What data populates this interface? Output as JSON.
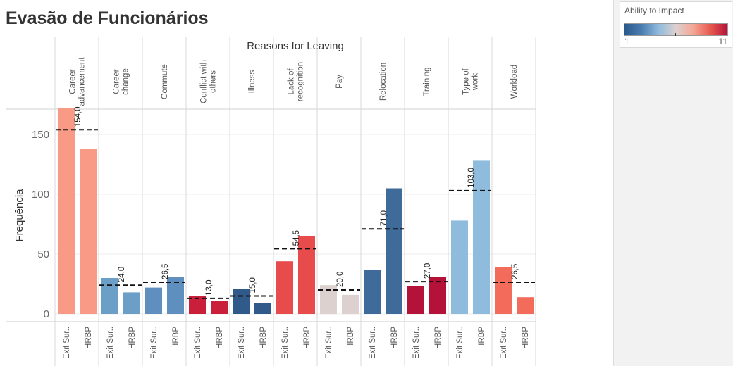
{
  "title": "Evasão de Funcionários",
  "legend": {
    "title": "Ability to Impact",
    "min_label": "1",
    "max_label": "11",
    "colors": [
      "#2a5a8c",
      "#4a7db0",
      "#8fbbdd",
      "#ddd1d0",
      "#f4a795",
      "#e85a4f",
      "#b5123a"
    ]
  },
  "chart_data": {
    "type": "bar",
    "title": "Evasão de Funcionários",
    "column_header": "Reasons for Leaving",
    "ylabel": "Frequência",
    "ylim": [
      0,
      175
    ],
    "yticks": [
      0,
      50,
      100,
      150
    ],
    "grid": true,
    "legend_position": "top-right",
    "sub_categories": [
      "Exit Sur..",
      "HRBP"
    ],
    "groups": [
      {
        "name": "Career advancement",
        "values": [
          172,
          138
        ],
        "colors": [
          "#f89a85",
          "#f89a85"
        ],
        "reference": 154.0,
        "reference_label": "154,0"
      },
      {
        "name": "Career change",
        "values": [
          30,
          18
        ],
        "colors": [
          "#6c9fc8",
          "#6c9fc8"
        ],
        "reference": 24.0,
        "reference_label": "24,0"
      },
      {
        "name": "Commute",
        "values": [
          22,
          31
        ],
        "colors": [
          "#5e8fbe",
          "#5e8fbe"
        ],
        "reference": 26.5,
        "reference_label": "26,5"
      },
      {
        "name": "Conflict with others",
        "values": [
          15,
          11
        ],
        "colors": [
          "#c91f3a",
          "#c91f3a"
        ],
        "reference": 13.0,
        "reference_label": "13,0"
      },
      {
        "name": "Illness",
        "values": [
          21,
          9
        ],
        "colors": [
          "#2f5a89",
          "#2f5a89"
        ],
        "reference": 15.0,
        "reference_label": "15,0"
      },
      {
        "name": "Lack of recognition",
        "values": [
          44,
          65
        ],
        "colors": [
          "#e84b4b",
          "#e84b4b"
        ],
        "reference": 54.5,
        "reference_label": "54,5"
      },
      {
        "name": "Pay",
        "values": [
          24,
          16
        ],
        "colors": [
          "#ddd1cf",
          "#ddd1cf"
        ],
        "reference": 20.0,
        "reference_label": "20,0"
      },
      {
        "name": "Relocation",
        "values": [
          37,
          105
        ],
        "colors": [
          "#3f6b9a",
          "#3f6b9a"
        ],
        "reference": 71.0,
        "reference_label": "71,0"
      },
      {
        "name": "Training",
        "values": [
          23,
          31
        ],
        "colors": [
          "#b5123a",
          "#b5123a"
        ],
        "reference": 27.0,
        "reference_label": "27,0"
      },
      {
        "name": "Type of work",
        "values": [
          78,
          128
        ],
        "colors": [
          "#8fbcdd",
          "#8fbcdd"
        ],
        "reference": 103.0,
        "reference_label": "103,0"
      },
      {
        "name": "Workload",
        "values": [
          39,
          14
        ],
        "colors": [
          "#f26b5b",
          "#f26b5b"
        ],
        "reference": 26.5,
        "reference_label": "26,5"
      }
    ]
  }
}
